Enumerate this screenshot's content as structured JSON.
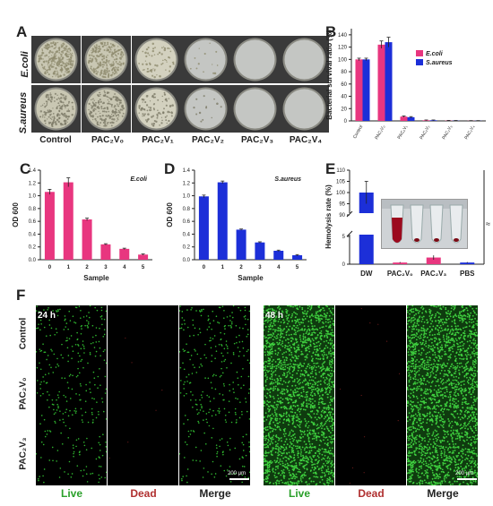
{
  "panel_letters": {
    "A": "A",
    "B": "B",
    "C": "C",
    "D": "D",
    "E": "E",
    "F": "F"
  },
  "panelA": {
    "row_labels": [
      "E.coli",
      "S.aureus"
    ],
    "col_labels": [
      "Control",
      "PAC₂V₀",
      "PAC₂V₁",
      "PAC₂V₂",
      "PAC₂V₃",
      "PAC₂V₄"
    ],
    "ecoli_colony_density": [
      1.0,
      0.9,
      0.25,
      0.05,
      0.0,
      0.0
    ],
    "saureus_colony_density": [
      0.6,
      0.7,
      0.35,
      0.05,
      0.0,
      0.0
    ]
  },
  "chart_data": [
    {
      "id": "B",
      "type": "bar",
      "ylabel": "Bacterial survival ratio (%)",
      "ylim": [
        0,
        150
      ],
      "yticks": [
        0,
        20,
        40,
        60,
        80,
        100,
        120,
        140
      ],
      "categories": [
        "Control",
        "PAC₂V₀",
        "PAC₂V₁",
        "PAC₂V₂",
        "PAC₂V₃",
        "PAC₂V₄"
      ],
      "series": [
        {
          "name": "E.coli",
          "color": "#e8367f",
          "values": [
            100,
            124,
            7,
            1,
            0.5,
            0.3
          ],
          "errors": [
            2,
            6,
            1,
            0.5,
            0.3,
            0.2
          ]
        },
        {
          "name": "S.aureus",
          "color": "#1c2fd8",
          "values": [
            100,
            128,
            6,
            1,
            0.4,
            0.3
          ],
          "errors": [
            2,
            8,
            1,
            0.5,
            0.3,
            0.2
          ]
        }
      ],
      "legend": "top-right"
    },
    {
      "id": "C",
      "type": "bar",
      "title": "E.coli",
      "xlabel": "Sample",
      "ylabel": "OD 600",
      "ylim": [
        0,
        1.4
      ],
      "yticks": [
        0.0,
        0.2,
        0.4,
        0.6,
        0.8,
        1.0,
        1.2,
        1.4
      ],
      "categories": [
        "0",
        "1",
        "2",
        "3",
        "4",
        "5"
      ],
      "color": "#e8367f",
      "values": [
        1.06,
        1.21,
        0.63,
        0.24,
        0.17,
        0.08
      ],
      "errors": [
        0.04,
        0.07,
        0.02,
        0.01,
        0.01,
        0.01
      ]
    },
    {
      "id": "D",
      "type": "bar",
      "title": "S.aureus",
      "xlabel": "Sample",
      "ylabel": "OD 600",
      "ylim": [
        0,
        1.4
      ],
      "yticks": [
        0.0,
        0.2,
        0.4,
        0.6,
        0.8,
        1.0,
        1.2,
        1.4
      ],
      "categories": [
        "0",
        "1",
        "2",
        "3",
        "4",
        "5"
      ],
      "color": "#1c2fd8",
      "values": [
        0.99,
        1.21,
        0.47,
        0.27,
        0.14,
        0.07
      ],
      "errors": [
        0.02,
        0.02,
        0.01,
        0.01,
        0.01,
        0.01
      ]
    },
    {
      "id": "E",
      "type": "bar",
      "ylabel": "Hemolysis rate (%)",
      "yticks_low": [
        0,
        5
      ],
      "yticks_high": [
        90,
        95,
        100,
        105,
        110
      ],
      "categories": [
        "DW",
        "PAC₂V₀",
        "PAC₂V₃",
        "PBS"
      ],
      "colors": [
        "#1c2fd8",
        "#e8367f",
        "#e8367f",
        "#1c2fd8"
      ],
      "values": [
        100,
        0.3,
        1.2,
        0.3
      ],
      "errors": [
        5,
        0.1,
        0.4,
        0.1
      ]
    }
  ],
  "panelF": {
    "row_labels": [
      "Control",
      "PAC₂V₀",
      "PAC₂V₃"
    ],
    "col_labels": [
      "Live",
      "Dead",
      "Merge",
      "Live",
      "Dead",
      "Merge"
    ],
    "live_color": "#2aa02a",
    "dead_color": "#b03030",
    "time_labels": [
      "24 h",
      "48 h"
    ],
    "scale_label": "200 μm",
    "density_24h": [
      0.55,
      0.45,
      0.3
    ],
    "density_48h": [
      1.0,
      1.0,
      1.0
    ]
  }
}
